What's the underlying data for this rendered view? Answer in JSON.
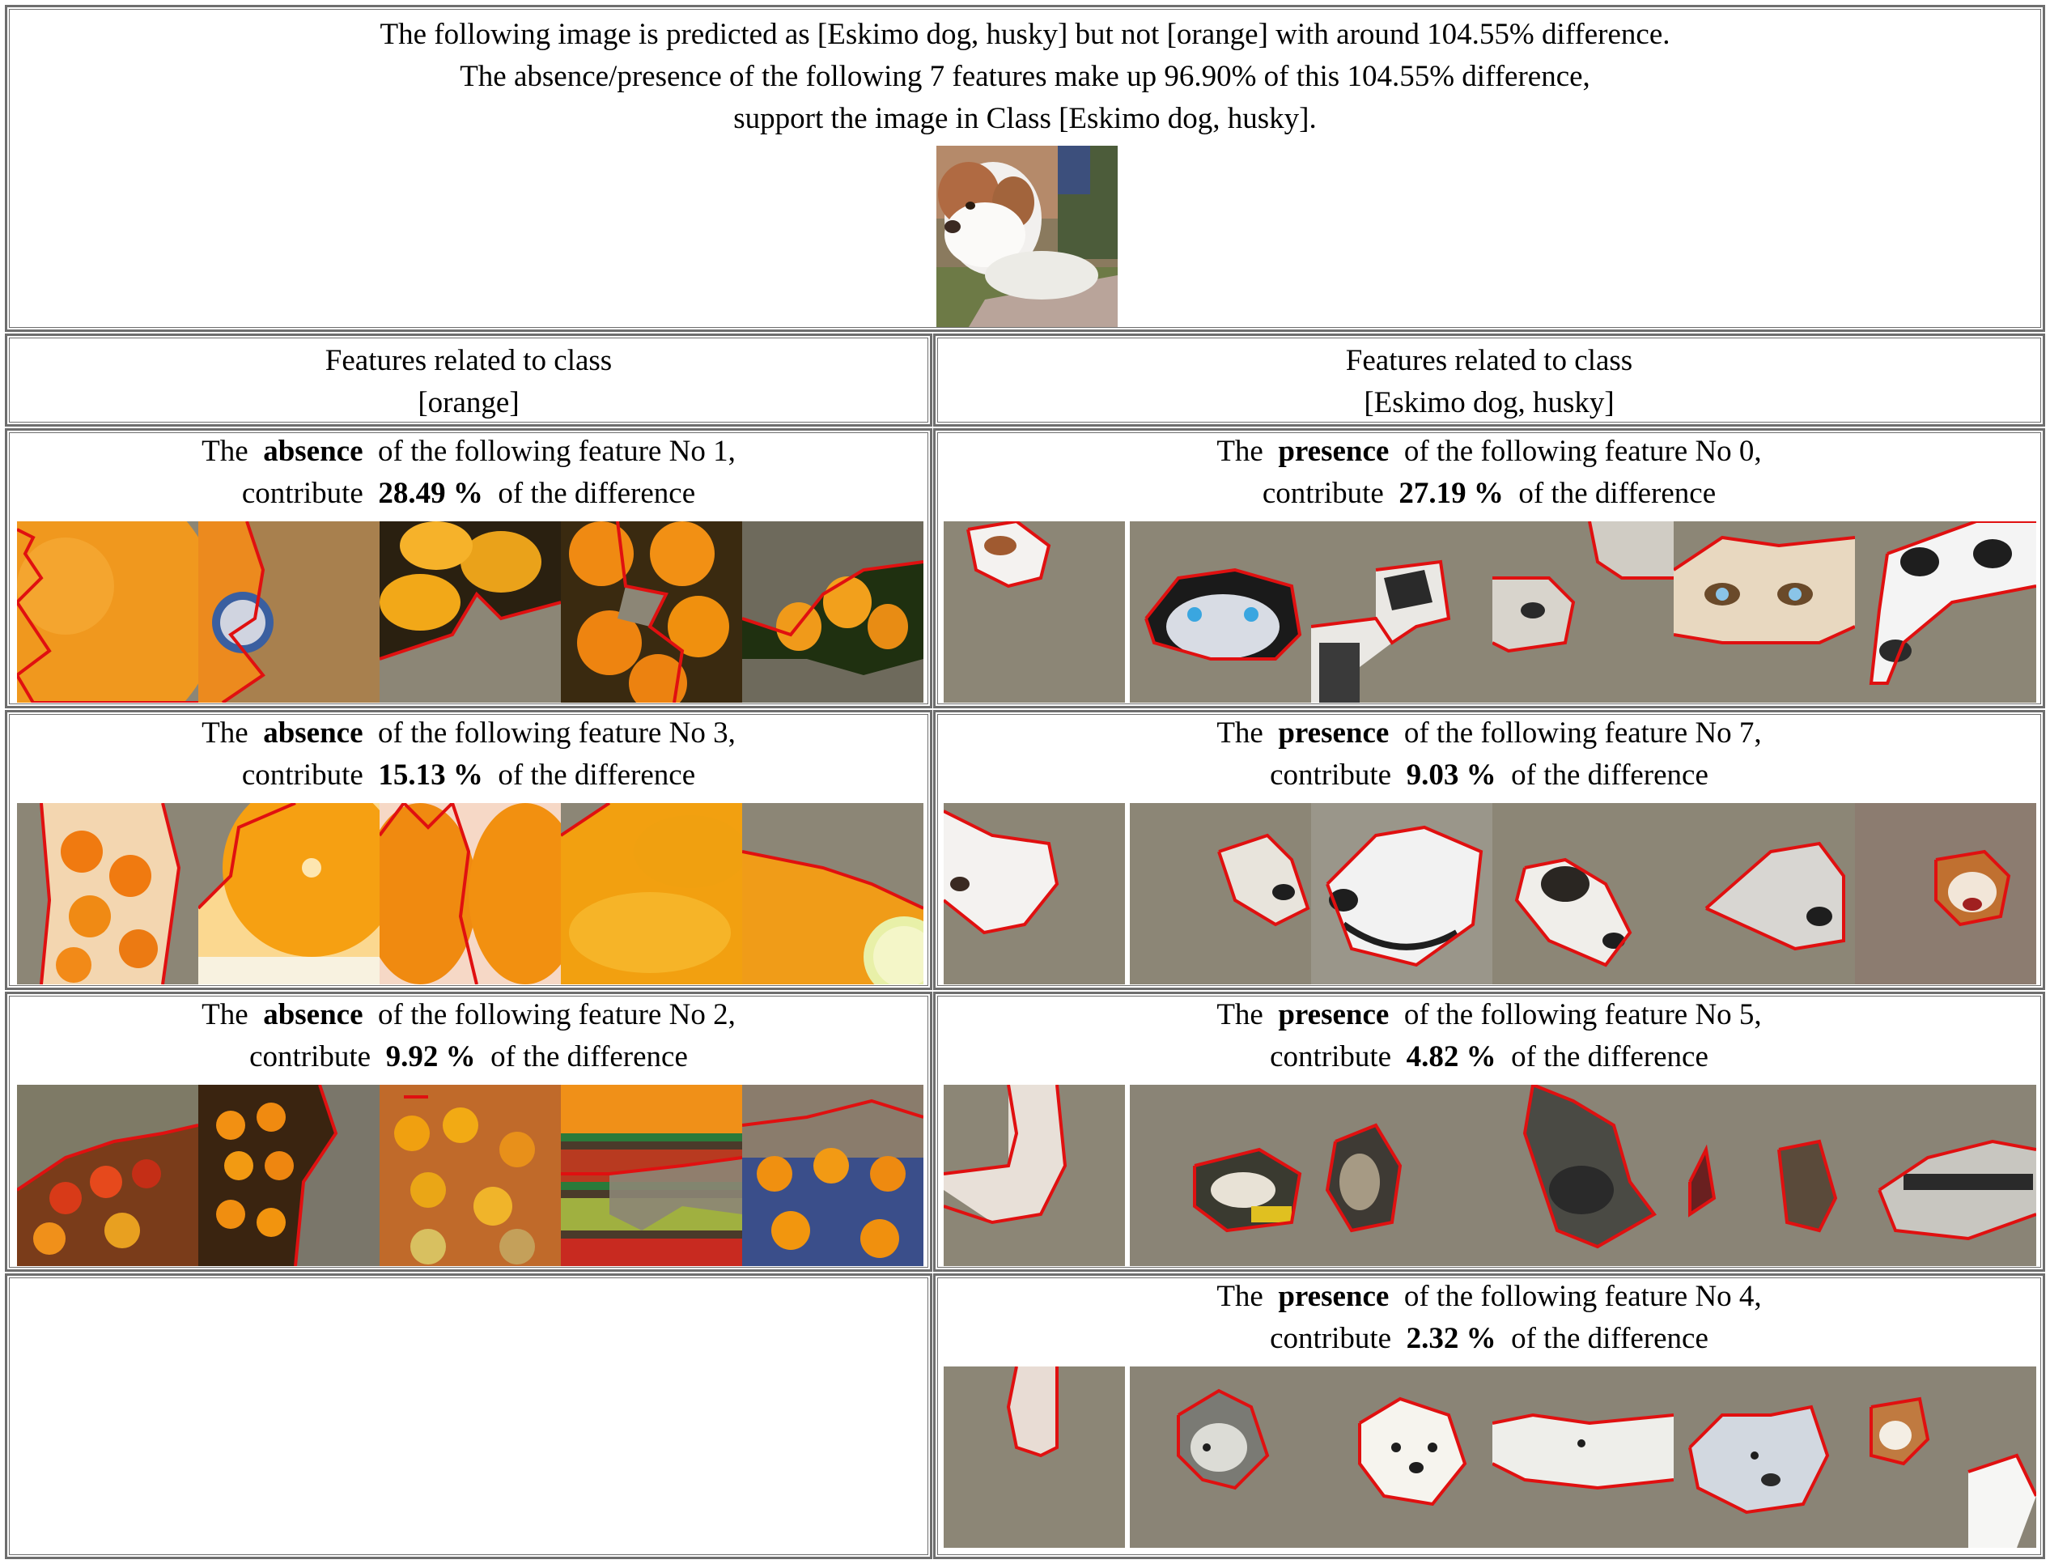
{
  "header": {
    "line1": "The following image is predicted as [Eskimo dog, husky] but not [orange] with around 104.55% difference.",
    "line2": "The absence/presence of the following 7 features make up 96.90% of this 104.55% difference,",
    "line3": "support the image in Class [Eskimo dog, husky]."
  },
  "columns": {
    "left": {
      "line1": "Features related to class",
      "line2": "[orange]"
    },
    "right": {
      "line1": "Features related to class",
      "line2": "[Eskimo dog, husky]"
    }
  },
  "common": {
    "the": "The",
    "of_following": "of the following feature No",
    "contribute": "contribute",
    "of_difference": "of the difference"
  },
  "left_features": [
    {
      "kind": "absence",
      "no": "1,",
      "pct": "28.49 %"
    },
    {
      "kind": "absence",
      "no": "3,",
      "pct": "15.13 %"
    },
    {
      "kind": "absence",
      "no": "2,",
      "pct": "9.92 %"
    }
  ],
  "right_features": [
    {
      "kind": "presence",
      "no": "0,",
      "pct": "27.19 %"
    },
    {
      "kind": "presence",
      "no": "7,",
      "pct": "9.03 %"
    },
    {
      "kind": "presence",
      "no": "5,",
      "pct": "4.82 %"
    },
    {
      "kind": "presence",
      "no": "4,",
      "pct": "2.32 %"
    }
  ],
  "colors": {
    "border": "#6e6e6e",
    "outline_red": "#e01010",
    "orange": "#f0901c",
    "grey_mask": "#8c8676"
  }
}
